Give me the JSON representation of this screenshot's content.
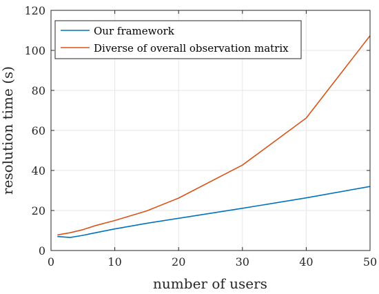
{
  "chart_data": {
    "type": "line",
    "xlabel": "number of users",
    "ylabel": "resolution time (s)",
    "xlim": [
      0,
      50
    ],
    "ylim": [
      0,
      120
    ],
    "xticks": [
      0,
      10,
      20,
      30,
      40,
      50
    ],
    "yticks": [
      0,
      20,
      40,
      60,
      80,
      100,
      120
    ],
    "grid": true,
    "legend_position": "top-left",
    "series": [
      {
        "name": "Our framework",
        "color": "#0072BD",
        "x": [
          1,
          3,
          5,
          7,
          10,
          15,
          20,
          30,
          40,
          50
        ],
        "y": [
          7.0,
          6.5,
          7.6,
          8.9,
          10.8,
          13.6,
          16.1,
          21.1,
          26.3,
          32.0
        ]
      },
      {
        "name": "Diverse of overall observation matrix",
        "color": "#D95319",
        "x": [
          1,
          3,
          5,
          7,
          10,
          15,
          20,
          30,
          40,
          50
        ],
        "y": [
          7.8,
          8.9,
          10.4,
          12.5,
          15.0,
          19.8,
          26.2,
          42.7,
          66.2,
          107.3
        ]
      }
    ]
  }
}
